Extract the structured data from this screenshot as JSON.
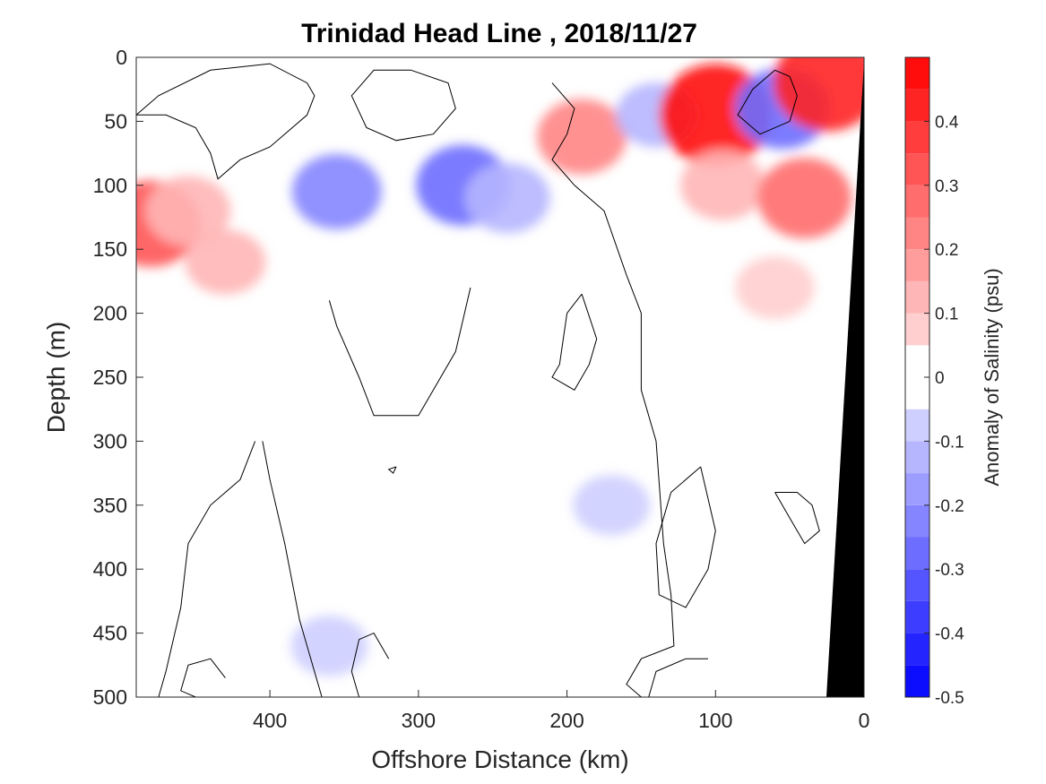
{
  "chart_data": {
    "type": "heatmap",
    "title": "Trinidad Head Line , 2018/11/27",
    "xlabel": "Offshore Distance (km)",
    "ylabel": "Depth (m)",
    "xlim": [
      490,
      0
    ],
    "ylim": [
      0,
      500
    ],
    "x_reversed": true,
    "y_reversed": true,
    "x_ticks": [
      400,
      300,
      200,
      100,
      0
    ],
    "y_ticks": [
      0,
      50,
      100,
      150,
      200,
      250,
      300,
      350,
      400,
      450,
      500
    ],
    "colorbar": {
      "label": "Anomaly of Salinity (psu)",
      "range": [
        -0.5,
        0.5
      ],
      "ticks": [
        "-0.5",
        "-0.4",
        "-0.3",
        "-0.2",
        "-0.1",
        "0",
        "0.1",
        "0.2",
        "0.3",
        "0.4"
      ],
      "tick_values": [
        -0.5,
        -0.4,
        -0.3,
        -0.2,
        -0.1,
        0,
        0.1,
        0.2,
        0.3,
        0.4
      ],
      "levels": [
        -0.5,
        -0.45,
        -0.4,
        -0.35,
        -0.3,
        -0.25,
        -0.2,
        -0.15,
        -0.1,
        -0.05,
        0.05,
        0.1,
        0.15,
        0.2,
        0.25,
        0.3,
        0.35,
        0.4,
        0.45,
        0.5
      ],
      "colormap": "blue-white-red"
    },
    "features": [
      {
        "x": 480,
        "z": 130,
        "value": 0.3
      },
      {
        "x": 455,
        "z": 120,
        "value": 0.15
      },
      {
        "x": 430,
        "z": 160,
        "value": 0.1
      },
      {
        "x": 355,
        "z": 105,
        "value": -0.2
      },
      {
        "x": 270,
        "z": 100,
        "value": -0.25
      },
      {
        "x": 240,
        "z": 110,
        "value": -0.15
      },
      {
        "x": 190,
        "z": 62,
        "value": 0.2
      },
      {
        "x": 140,
        "z": 45,
        "value": -0.1
      },
      {
        "x": 100,
        "z": 45,
        "value": 0.45
      },
      {
        "x": 95,
        "z": 100,
        "value": 0.15
      },
      {
        "x": 55,
        "z": 40,
        "value": -0.25
      },
      {
        "x": 25,
        "z": 20,
        "value": 0.4
      },
      {
        "x": 40,
        "z": 110,
        "value": 0.25
      },
      {
        "x": 60,
        "z": 180,
        "value": 0.08
      },
      {
        "x": 170,
        "z": 350,
        "value": -0.06
      },
      {
        "x": 360,
        "z": 460,
        "value": -0.06
      }
    ],
    "zero_contours": [
      [
        [
          490,
          45
        ],
        [
          470,
          45
        ],
        [
          450,
          55
        ],
        [
          440,
          75
        ],
        [
          435,
          95
        ],
        [
          420,
          80
        ],
        [
          400,
          70
        ],
        [
          375,
          45
        ],
        [
          370,
          30
        ],
        [
          375,
          20
        ],
        [
          400,
          5
        ],
        [
          440,
          10
        ],
        [
          475,
          30
        ],
        [
          490,
          45
        ]
      ],
      [
        [
          305,
          10
        ],
        [
          280,
          20
        ],
        [
          275,
          40
        ],
        [
          290,
          60
        ],
        [
          315,
          65
        ],
        [
          335,
          55
        ],
        [
          345,
          30
        ],
        [
          330,
          10
        ],
        [
          305,
          10
        ]
      ],
      [
        [
          210,
          20
        ],
        [
          195,
          40
        ],
        [
          200,
          60
        ],
        [
          210,
          80
        ],
        [
          195,
          100
        ],
        [
          175,
          120
        ],
        [
          160,
          170
        ],
        [
          150,
          200
        ],
        [
          150,
          260
        ],
        [
          140,
          300
        ],
        [
          135,
          380
        ],
        [
          130,
          420
        ],
        [
          128,
          460
        ],
        [
          150,
          470
        ],
        [
          160,
          490
        ],
        [
          150,
          500
        ]
      ],
      [
        [
          60,
          10
        ],
        [
          75,
          25
        ],
        [
          85,
          45
        ],
        [
          70,
          60
        ],
        [
          50,
          50
        ],
        [
          45,
          30
        ],
        [
          50,
          15
        ],
        [
          60,
          10
        ]
      ],
      [
        [
          410,
          300
        ],
        [
          420,
          330
        ],
        [
          440,
          350
        ],
        [
          455,
          380
        ],
        [
          460,
          430
        ],
        [
          470,
          480
        ],
        [
          475,
          500
        ]
      ],
      [
        [
          365,
          500
        ],
        [
          380,
          440
        ],
        [
          390,
          380
        ],
        [
          400,
          330
        ],
        [
          405,
          300
        ]
      ],
      [
        [
          265,
          180
        ],
        [
          275,
          230
        ],
        [
          300,
          280
        ],
        [
          330,
          280
        ],
        [
          340,
          250
        ],
        [
          355,
          210
        ],
        [
          360,
          190
        ]
      ],
      [
        [
          190,
          185
        ],
        [
          200,
          200
        ],
        [
          205,
          240
        ],
        [
          210,
          250
        ],
        [
          195,
          260
        ],
        [
          185,
          240
        ],
        [
          180,
          220
        ],
        [
          190,
          185
        ]
      ],
      [
        [
          110,
          320
        ],
        [
          130,
          340
        ],
        [
          140,
          380
        ],
        [
          138,
          420
        ],
        [
          120,
          430
        ],
        [
          105,
          400
        ],
        [
          100,
          370
        ],
        [
          110,
          320
        ]
      ],
      [
        [
          60,
          340
        ],
        [
          50,
          360
        ],
        [
          40,
          380
        ],
        [
          30,
          370
        ],
        [
          35,
          350
        ],
        [
          45,
          340
        ],
        [
          60,
          340
        ]
      ],
      [
        [
          320,
          470
        ],
        [
          330,
          450
        ],
        [
          340,
          455
        ],
        [
          345,
          480
        ],
        [
          340,
          500
        ]
      ],
      [
        [
          105,
          470
        ],
        [
          120,
          470
        ],
        [
          140,
          480
        ],
        [
          145,
          500
        ]
      ],
      [
        [
          430,
          485
        ],
        [
          440,
          470
        ],
        [
          455,
          475
        ],
        [
          460,
          495
        ],
        [
          450,
          500
        ]
      ],
      [
        [
          315,
          320
        ],
        [
          320,
          322
        ],
        [
          317,
          325
        ],
        [
          315,
          320
        ]
      ]
    ]
  }
}
